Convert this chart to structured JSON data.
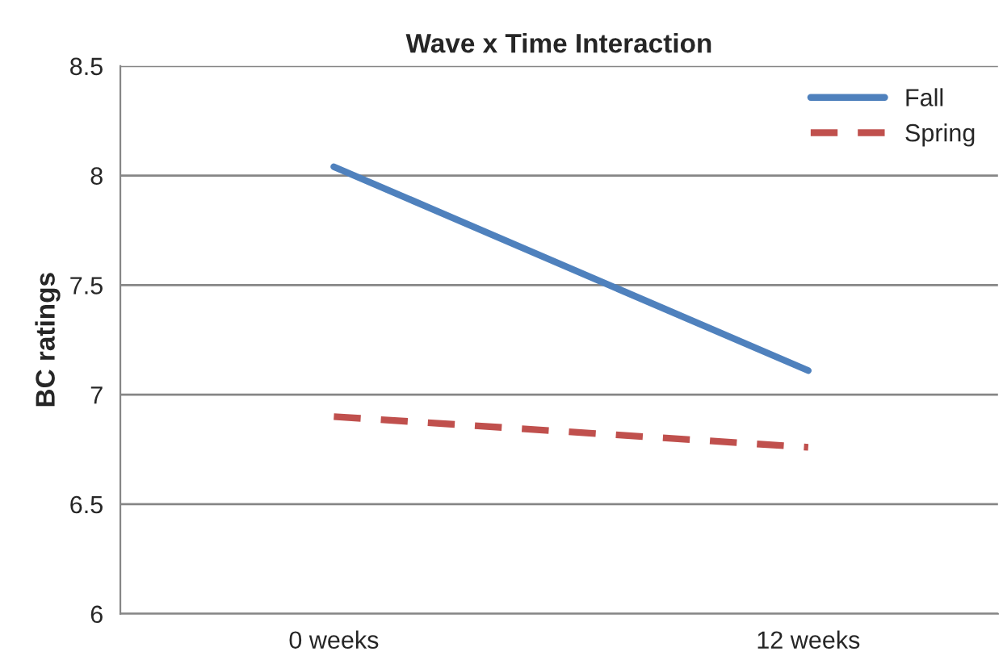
{
  "chart_data": {
    "type": "line",
    "title": "Wave x Time Interaction",
    "ylabel": "BC ratings",
    "categories": [
      "0 weeks",
      "12 weeks"
    ],
    "series": [
      {
        "name": "Fall",
        "color": "#4f81bd",
        "values": [
          8.04,
          7.11
        ],
        "line_style": "solid"
      },
      {
        "name": "Spring",
        "color": "#c0504d",
        "values": [
          6.9,
          6.76
        ],
        "line_style": "dashed"
      }
    ],
    "ylim": [
      6,
      8.5
    ],
    "yticks": [
      6,
      6.5,
      7,
      7.5,
      8,
      8.5
    ],
    "grid": "y",
    "legend": "top right",
    "marker": "none"
  }
}
